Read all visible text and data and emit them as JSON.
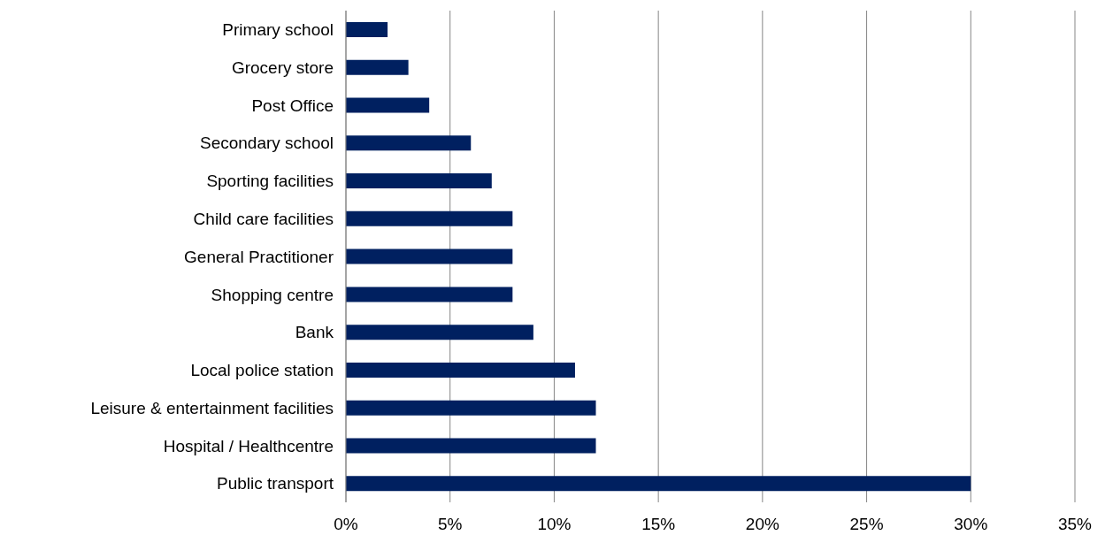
{
  "chart_data": {
    "type": "bar",
    "orientation": "horizontal",
    "categories": [
      "Primary school",
      "Grocery store",
      "Post Office",
      "Secondary school",
      "Sporting facilities",
      "Child care facilities",
      "General Practitioner",
      "Shopping centre",
      "Bank",
      "Local police station",
      "Leisure & entertainment facilities",
      "Hospital / Healthcentre",
      "Public transport"
    ],
    "values": [
      2,
      3,
      4,
      6,
      7,
      8,
      8,
      8,
      9,
      11,
      12,
      12,
      30
    ],
    "color": "#002060",
    "xlim": [
      0,
      35
    ],
    "xticks": [
      {
        "value": 0,
        "label": "0%"
      },
      {
        "value": 5,
        "label": "5%"
      },
      {
        "value": 10,
        "label": "10%"
      },
      {
        "value": 15,
        "label": "15%"
      },
      {
        "value": 20,
        "label": "20%"
      },
      {
        "value": 25,
        "label": "25%"
      },
      {
        "value": 30,
        "label": "30%"
      },
      {
        "value": 35,
        "label": "35%"
      }
    ],
    "grid": "x"
  }
}
